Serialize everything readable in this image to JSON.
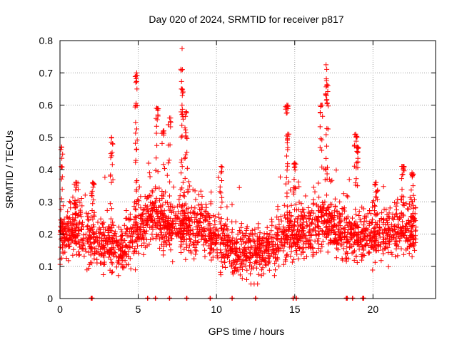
{
  "chart_data": {
    "type": "scatter",
    "title": "Day 020 of 2024, SRMTID for receiver p817",
    "xlabel": "GPS time / hours",
    "ylabel": "SRMTID / TECUs",
    "xlim": [
      0,
      24
    ],
    "ylim": [
      0,
      0.8
    ],
    "xticks": [
      0,
      5,
      10,
      15,
      20
    ],
    "xtick_labels": [
      "0",
      "5",
      "10",
      "15",
      "20"
    ],
    "yticks": [
      0,
      0.1,
      0.2,
      0.3,
      0.4,
      0.5,
      0.6,
      0.7,
      0.8
    ],
    "ytick_labels": [
      "0",
      "0.1",
      "0.2",
      "0.3",
      "0.4",
      "0.5",
      "0.6",
      "0.7",
      "0.8"
    ],
    "grid": true,
    "marker": "+",
    "color": "#ff0000",
    "point_count": 2400,
    "x_extent": [
      0.0,
      22.75
    ],
    "baseline_level": [
      [
        0.0,
        0.19
      ],
      [
        0.5,
        0.2
      ],
      [
        1.0,
        0.21
      ],
      [
        1.5,
        0.19
      ],
      [
        2.0,
        0.17
      ],
      [
        2.5,
        0.17
      ],
      [
        3.0,
        0.17
      ],
      [
        3.5,
        0.16
      ],
      [
        4.0,
        0.16
      ],
      [
        4.5,
        0.19
      ],
      [
        5.0,
        0.22
      ],
      [
        5.5,
        0.24
      ],
      [
        6.0,
        0.25
      ],
      [
        6.5,
        0.23
      ],
      [
        7.0,
        0.22
      ],
      [
        7.5,
        0.22
      ],
      [
        8.0,
        0.22
      ],
      [
        8.5,
        0.22
      ],
      [
        9.0,
        0.22
      ],
      [
        9.5,
        0.2
      ],
      [
        10.0,
        0.18
      ],
      [
        10.5,
        0.16
      ],
      [
        11.0,
        0.15
      ],
      [
        11.5,
        0.15
      ],
      [
        12.0,
        0.15
      ],
      [
        12.5,
        0.13
      ],
      [
        13.0,
        0.14
      ],
      [
        13.5,
        0.16
      ],
      [
        14.0,
        0.18
      ],
      [
        14.5,
        0.2
      ],
      [
        15.0,
        0.2
      ],
      [
        15.5,
        0.2
      ],
      [
        16.0,
        0.21
      ],
      [
        16.5,
        0.22
      ],
      [
        17.0,
        0.24
      ],
      [
        17.5,
        0.22
      ],
      [
        18.0,
        0.2
      ],
      [
        18.5,
        0.19
      ],
      [
        19.0,
        0.19
      ],
      [
        19.5,
        0.18
      ],
      [
        20.0,
        0.2
      ],
      [
        20.5,
        0.2
      ],
      [
        21.0,
        0.19
      ],
      [
        21.5,
        0.21
      ],
      [
        22.0,
        0.22
      ],
      [
        22.5,
        0.21
      ],
      [
        22.75,
        0.21
      ]
    ],
    "spikes": [
      {
        "x": 0.1,
        "y": 0.47
      },
      {
        "x": 1.0,
        "y": 0.36
      },
      {
        "x": 2.1,
        "y": 0.36
      },
      {
        "x": 3.3,
        "y": 0.5
      },
      {
        "x": 4.9,
        "y": 0.7
      },
      {
        "x": 4.85,
        "y": 0.6
      },
      {
        "x": 6.2,
        "y": 0.59
      },
      {
        "x": 6.6,
        "y": 0.52
      },
      {
        "x": 7.0,
        "y": 0.56
      },
      {
        "x": 7.8,
        "y": 0.775
      },
      {
        "x": 7.8,
        "y": 0.65
      },
      {
        "x": 8.05,
        "y": 0.58
      },
      {
        "x": 10.3,
        "y": 0.41
      },
      {
        "x": 14.5,
        "y": 0.6
      },
      {
        "x": 14.55,
        "y": 0.51
      },
      {
        "x": 15.0,
        "y": 0.42
      },
      {
        "x": 16.7,
        "y": 0.6
      },
      {
        "x": 17.0,
        "y": 0.725
      },
      {
        "x": 17.05,
        "y": 0.66
      },
      {
        "x": 18.9,
        "y": 0.51
      },
      {
        "x": 19.0,
        "y": 0.47
      },
      {
        "x": 20.2,
        "y": 0.36
      },
      {
        "x": 21.9,
        "y": 0.41
      },
      {
        "x": 22.5,
        "y": 0.39
      }
    ],
    "zero_values_x": [
      2.0,
      2.05,
      5.6,
      6.1,
      7.0,
      8.1,
      9.6,
      11.0,
      12.5,
      14.9,
      15.1,
      18.3,
      18.35,
      18.7,
      19.35,
      19.4
    ]
  }
}
